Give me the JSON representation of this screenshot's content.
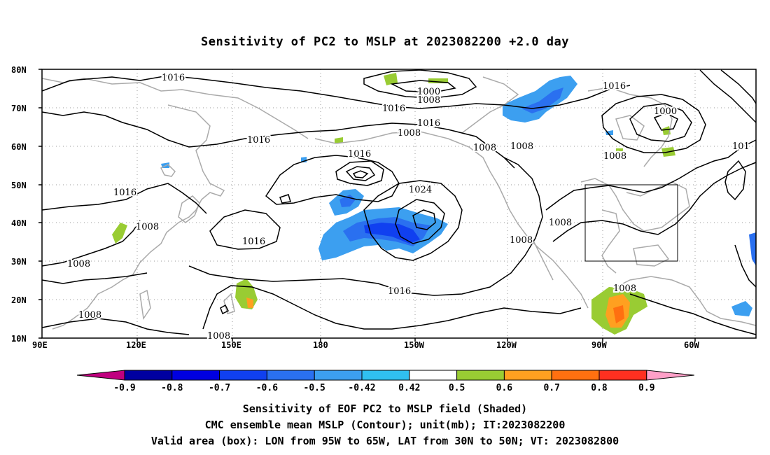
{
  "title": "Sensitivity of PC2 to MSLP at 2023082200 +2.0 day",
  "lat_ticks": [
    "80N",
    "70N",
    "60N",
    "50N",
    "40N",
    "30N",
    "20N",
    "10N"
  ],
  "lon_ticks": [
    "90E",
    "120E",
    "150E",
    "180",
    "150W",
    "120W",
    "90W",
    "60W"
  ],
  "contour_labels": [
    "1016",
    "1000",
    "1008",
    "1016",
    "1016",
    "1008",
    "1016",
    "1016",
    "1008",
    "1008",
    "1016",
    "1000",
    "101",
    "1024",
    "1016",
    "1008",
    "1016",
    "1008",
    "1008",
    "1008",
    "1016",
    "1008",
    "1008",
    "1008",
    "1008"
  ],
  "colorbar": {
    "labels": [
      "-0.9",
      "-0.8",
      "-0.7",
      "-0.6",
      "-0.5",
      "-0.42",
      "0.42",
      "0.5",
      "0.6",
      "0.7",
      "0.8",
      "0.9"
    ],
    "colors": [
      "#c0007f",
      "#0000a0",
      "#0000e0",
      "#1040f0",
      "#2a70f0",
      "#3c9ff0",
      "#30c0f0",
      "#ffffff",
      "#99cc33",
      "#ffa020",
      "#ff7010",
      "#ff3020",
      "#ff0010",
      "#ffa0c8"
    ]
  },
  "footer": {
    "line1": "Sensitivity of EOF PC2 to MSLP field (Shaded)",
    "line2": "CMC ensemble mean MSLP (Contour); unit(mb); IT:2023082200",
    "line3": "Valid area (box): LON from 95W to 65W, LAT from 30N to 50N; VT: 2023082800"
  }
}
